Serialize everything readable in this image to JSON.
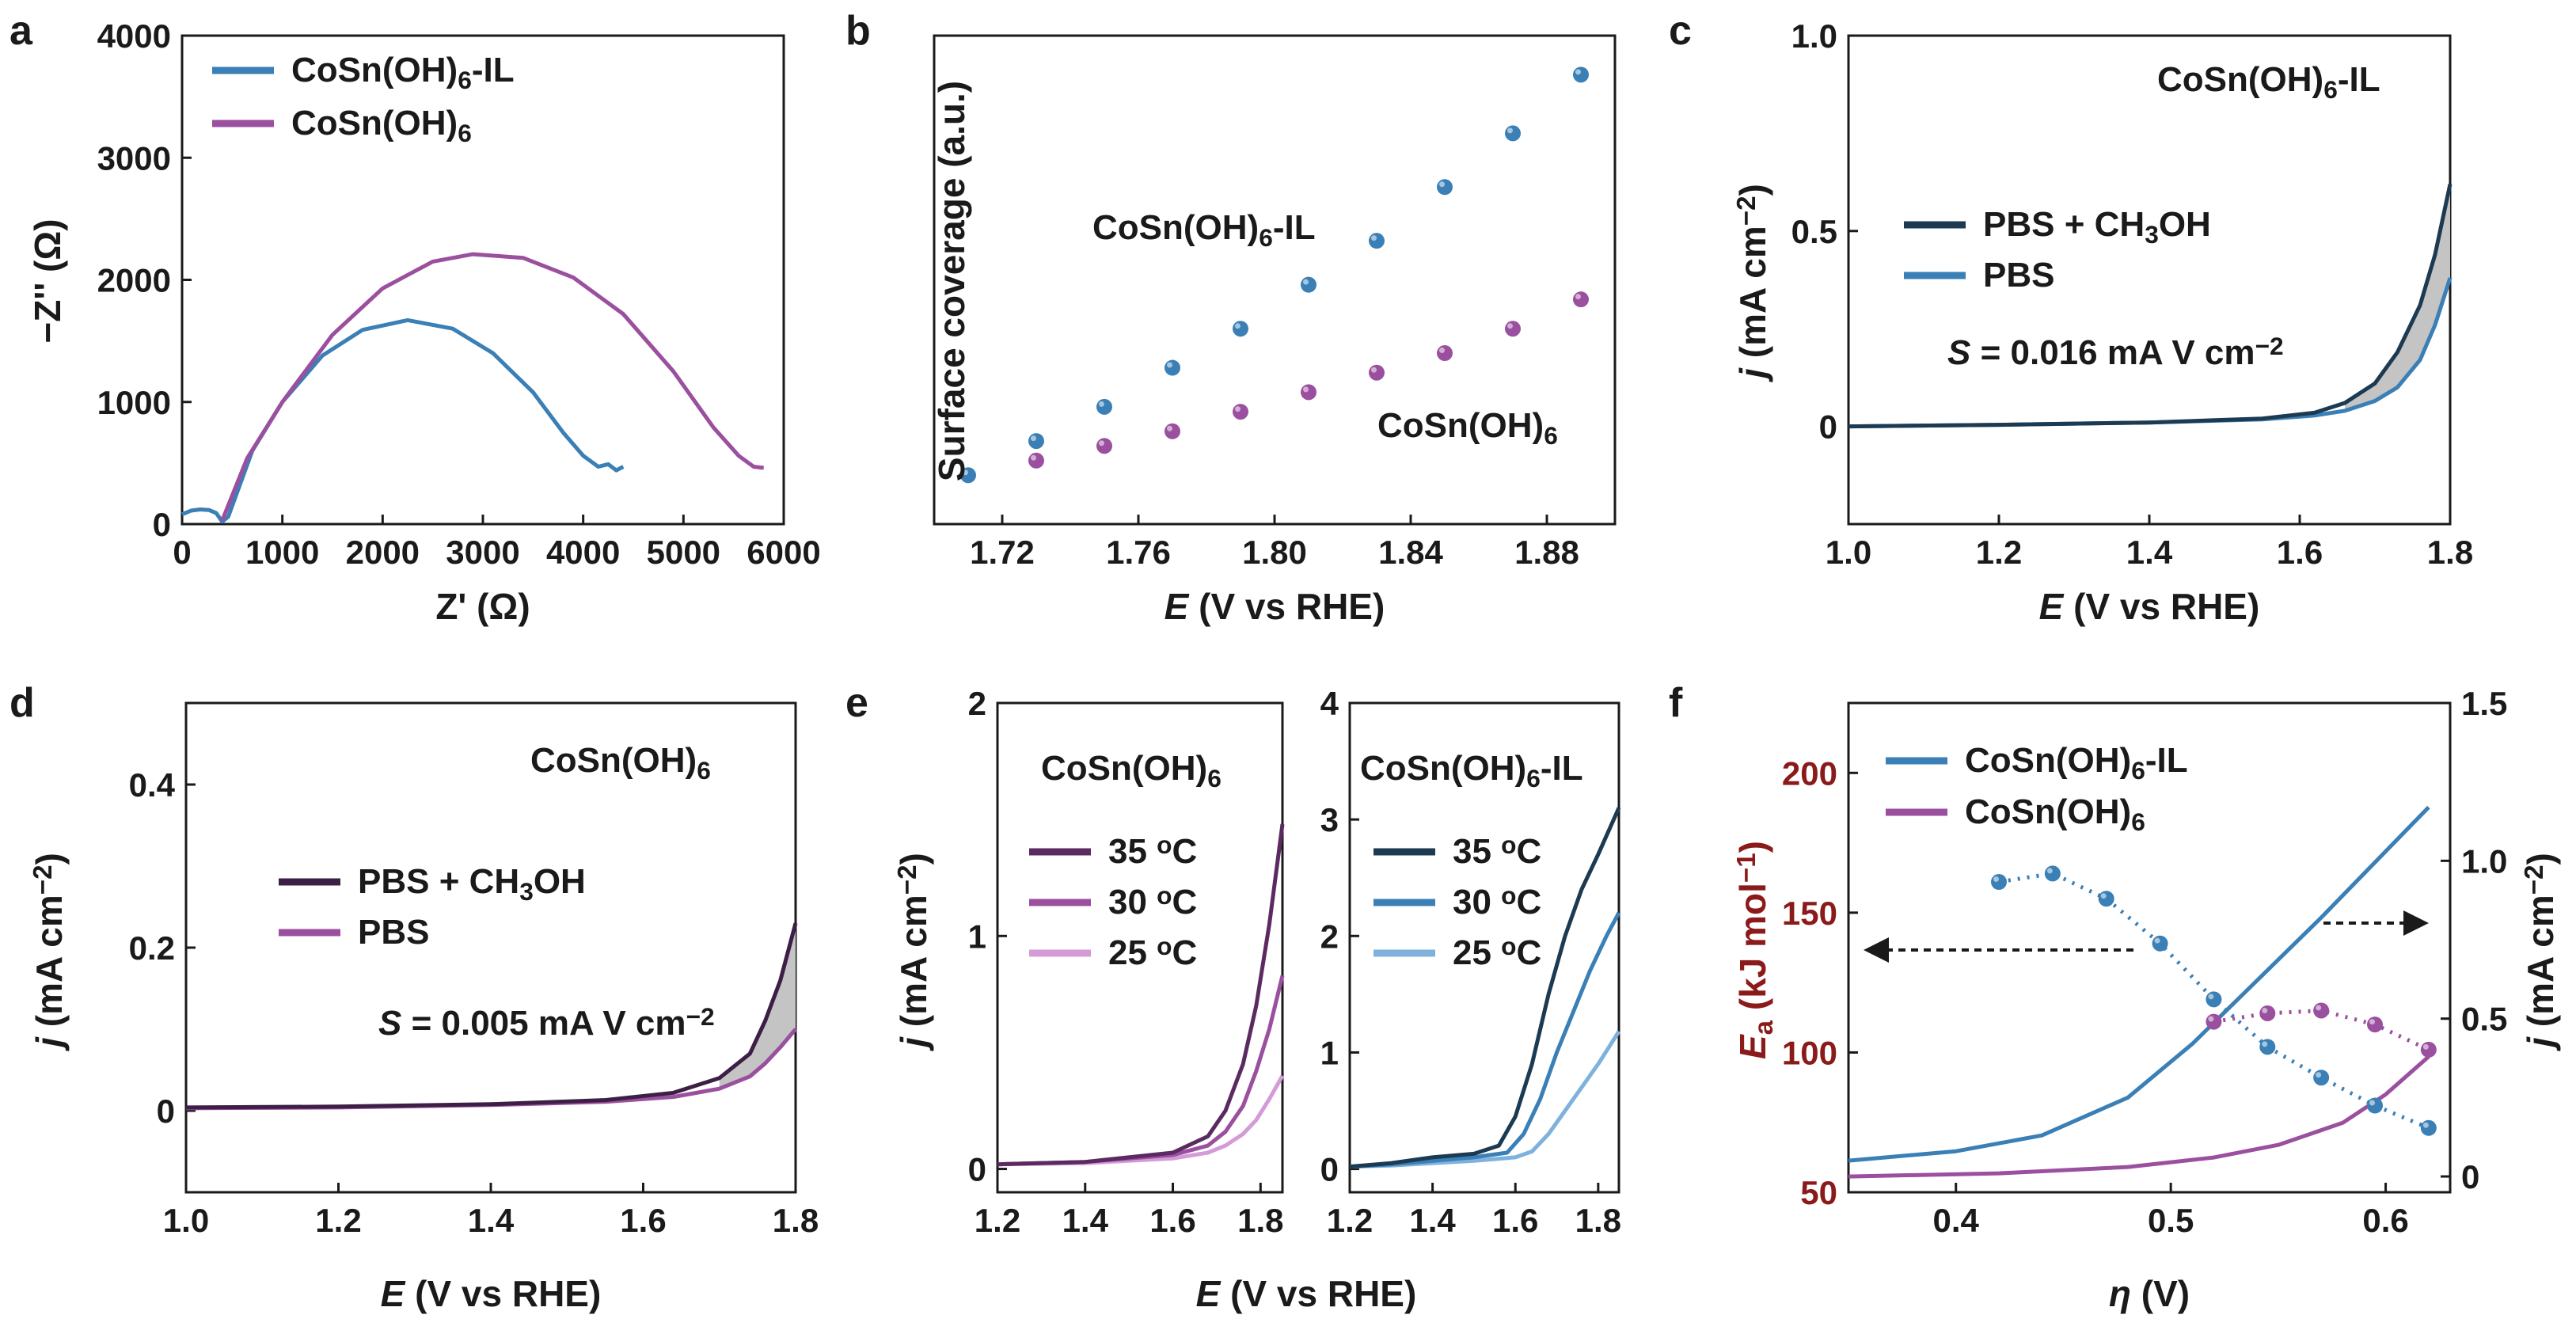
{
  "chart_data": [
    {
      "panel": "a",
      "type": "line",
      "xlabel": "Z' (Ω)",
      "ylabel": "−Z'' (Ω)",
      "xlim": [
        0,
        6000
      ],
      "ylim": [
        0,
        4000
      ],
      "xticks": [
        "0",
        "1000",
        "2000",
        "3000",
        "4000",
        "5000",
        "6000"
      ],
      "yticks": [
        "0",
        "1000",
        "2000",
        "3000",
        "4000"
      ],
      "legend": [
        "CoSn(OH)6-IL",
        "CoSn(OH)6"
      ],
      "series": [
        {
          "name": "CoSn(OH)6-IL",
          "color": "#3a7fb5",
          "x": [
            0,
            90,
            180,
            270,
            340,
            400,
            460,
            700,
            1000,
            1400,
            1800,
            2250,
            2700,
            3100,
            3500,
            3800,
            4000,
            4150,
            4250,
            4330,
            4400
          ],
          "y": [
            80,
            110,
            120,
            115,
            90,
            20,
            60,
            600,
            1000,
            1380,
            1590,
            1670,
            1600,
            1400,
            1080,
            750,
            560,
            470,
            490,
            440,
            470
          ]
        },
        {
          "name": "CoSn(OH)6",
          "color": "#9b4f9f",
          "x": [
            400,
            650,
            1000,
            1500,
            2000,
            2500,
            2900,
            3400,
            3900,
            4400,
            4900,
            5300,
            5550,
            5700,
            5800
          ],
          "y": [
            30,
            540,
            1000,
            1550,
            1930,
            2150,
            2210,
            2180,
            2020,
            1720,
            1250,
            790,
            560,
            470,
            460
          ]
        }
      ]
    },
    {
      "panel": "b",
      "type": "scatter",
      "xlabel": "E  (V vs RHE)",
      "ylabel": "Surface coverage (a.u.)",
      "xlim": [
        1.7,
        1.9
      ],
      "ylim": [
        0,
        10
      ],
      "xticks": [
        "1.72",
        "1.76",
        "1.80",
        "1.84",
        "1.88"
      ],
      "annotations": [
        "CoSn(OH)6-IL",
        "CoSn(OH)6"
      ],
      "series": [
        {
          "name": "CoSn(OH)6-IL",
          "color": "#3a7fb5",
          "x": [
            1.71,
            1.73,
            1.75,
            1.77,
            1.79,
            1.81,
            1.83,
            1.85,
            1.87,
            1.89
          ],
          "y": [
            1.0,
            1.7,
            2.4,
            3.2,
            4.0,
            4.9,
            5.8,
            6.9,
            8.0,
            9.2
          ]
        },
        {
          "name": "CoSn(OH)6",
          "color": "#9b4f9f",
          "x": [
            1.73,
            1.75,
            1.77,
            1.79,
            1.81,
            1.83,
            1.85,
            1.87,
            1.89
          ],
          "y": [
            1.3,
            1.6,
            1.9,
            2.3,
            2.7,
            3.1,
            3.5,
            4.0,
            4.6
          ]
        }
      ]
    },
    {
      "panel": "c",
      "type": "line",
      "xlabel": "E (V vs RHE)",
      "ylabel": "j (mA cm−2)",
      "xlim": [
        1.0,
        1.8
      ],
      "ylim": [
        -0.25,
        1.0
      ],
      "xticks": [
        "1.0",
        "1.2",
        "1.4",
        "1.6",
        "1.8"
      ],
      "yticks": [
        "0",
        "0.5",
        "1.0"
      ],
      "annotations": [
        "CoSn(OH)6-IL",
        "S = 0.016 mA V cm−2"
      ],
      "legend": [
        "PBS + CH3OH",
        "PBS"
      ],
      "series": [
        {
          "name": "PBS + CH3OH",
          "color": "#1c3a52",
          "x": [
            1.0,
            1.2,
            1.4,
            1.55,
            1.62,
            1.66,
            1.7,
            1.73,
            1.76,
            1.78,
            1.8
          ],
          "y": [
            0,
            0.004,
            0.01,
            0.02,
            0.035,
            0.06,
            0.11,
            0.19,
            0.31,
            0.44,
            0.62
          ]
        },
        {
          "name": "PBS",
          "color": "#3a7fb5",
          "x": [
            1.0,
            1.2,
            1.4,
            1.55,
            1.62,
            1.66,
            1.7,
            1.73,
            1.76,
            1.78,
            1.8
          ],
          "y": [
            0,
            0.004,
            0.01,
            0.018,
            0.028,
            0.04,
            0.065,
            0.1,
            0.17,
            0.26,
            0.38
          ]
        }
      ]
    },
    {
      "panel": "d",
      "type": "line",
      "xlabel": "E (V vs RHE)",
      "ylabel": "j (mA cm−2)",
      "xlim": [
        1.0,
        1.8
      ],
      "ylim": [
        -0.1,
        0.5
      ],
      "xticks": [
        "1.0",
        "1.2",
        "1.4",
        "1.6",
        "1.8"
      ],
      "yticks": [
        "0",
        "0.2",
        "0.4"
      ],
      "annotations": [
        "CoSn(OH)6",
        "S = 0.005 mA V cm−2"
      ],
      "legend": [
        "PBS + CH3OH",
        "PBS"
      ],
      "series": [
        {
          "name": "PBS + CH3OH",
          "color": "#3d1f45",
          "x": [
            1.0,
            1.2,
            1.4,
            1.55,
            1.64,
            1.7,
            1.74,
            1.76,
            1.78,
            1.8
          ],
          "y": [
            0.004,
            0.005,
            0.008,
            0.013,
            0.022,
            0.04,
            0.07,
            0.11,
            0.16,
            0.23
          ]
        },
        {
          "name": "PBS",
          "color": "#9b4f9f",
          "x": [
            1.0,
            1.2,
            1.4,
            1.55,
            1.64,
            1.7,
            1.74,
            1.76,
            1.78,
            1.8
          ],
          "y": [
            0.003,
            0.004,
            0.007,
            0.011,
            0.017,
            0.027,
            0.042,
            0.058,
            0.078,
            0.1
          ]
        }
      ]
    },
    {
      "panel": "e-left",
      "type": "line",
      "xlabel": "",
      "ylabel": "j (mA cm−2)",
      "xlim": [
        1.2,
        1.85
      ],
      "ylim": [
        -0.1,
        2.0
      ],
      "xticks": [
        "1.2",
        "1.4",
        "1.6",
        "1.8"
      ],
      "yticks": [
        "0",
        "1",
        "2"
      ],
      "annotations": [
        "CoSn(OH)6"
      ],
      "legend": [
        "35 oC",
        "30 oC",
        "25 oC"
      ],
      "series": [
        {
          "name": "35 oC",
          "color": "#5b2a61",
          "x": [
            1.2,
            1.4,
            1.6,
            1.68,
            1.72,
            1.76,
            1.79,
            1.82,
            1.85
          ],
          "y": [
            0.02,
            0.03,
            0.07,
            0.14,
            0.25,
            0.45,
            0.7,
            1.05,
            1.48
          ]
        },
        {
          "name": "30 oC",
          "color": "#9b4f9f",
          "x": [
            1.2,
            1.4,
            1.6,
            1.68,
            1.72,
            1.76,
            1.79,
            1.82,
            1.85
          ],
          "y": [
            0.02,
            0.03,
            0.06,
            0.1,
            0.16,
            0.27,
            0.42,
            0.6,
            0.83
          ]
        },
        {
          "name": "25 oC",
          "color": "#d49bd6",
          "x": [
            1.2,
            1.4,
            1.6,
            1.68,
            1.72,
            1.76,
            1.79,
            1.82,
            1.85
          ],
          "y": [
            0.02,
            0.025,
            0.045,
            0.07,
            0.1,
            0.15,
            0.21,
            0.3,
            0.4
          ]
        }
      ]
    },
    {
      "panel": "e-right",
      "type": "line",
      "xlabel": "E (V vs RHE)",
      "ylabel": "",
      "xlim": [
        1.2,
        1.85
      ],
      "ylim": [
        -0.2,
        4.0
      ],
      "xticks": [
        "1.2",
        "1.4",
        "1.6",
        "1.8"
      ],
      "yticks": [
        "0",
        "1",
        "2",
        "3",
        "4"
      ],
      "annotations": [
        "CoSn(OH)6-IL"
      ],
      "legend": [
        "35 oC",
        "30 oC",
        "25 oC"
      ],
      "series": [
        {
          "name": "35 oC",
          "color": "#1c3a52",
          "x": [
            1.2,
            1.3,
            1.4,
            1.5,
            1.56,
            1.6,
            1.64,
            1.68,
            1.72,
            1.76,
            1.8,
            1.85
          ],
          "y": [
            0.02,
            0.05,
            0.1,
            0.13,
            0.2,
            0.45,
            0.9,
            1.5,
            2.0,
            2.4,
            2.7,
            3.1
          ]
        },
        {
          "name": "30 oC",
          "color": "#3a7fb5",
          "x": [
            1.2,
            1.3,
            1.4,
            1.5,
            1.58,
            1.62,
            1.66,
            1.7,
            1.74,
            1.78,
            1.82,
            1.85
          ],
          "y": [
            0.02,
            0.04,
            0.07,
            0.1,
            0.14,
            0.3,
            0.6,
            1.0,
            1.35,
            1.7,
            2.0,
            2.2
          ]
        },
        {
          "name": "25 oC",
          "color": "#7eb2dd",
          "x": [
            1.2,
            1.3,
            1.4,
            1.5,
            1.6,
            1.64,
            1.68,
            1.72,
            1.76,
            1.8,
            1.85
          ],
          "y": [
            0.02,
            0.03,
            0.05,
            0.07,
            0.1,
            0.15,
            0.3,
            0.5,
            0.7,
            0.9,
            1.18
          ]
        }
      ]
    },
    {
      "panel": "f",
      "type": "line",
      "xlabel": "η (V)",
      "ylabel": "Ea (kJ mol−1)",
      "ylabel_right": "j (mA cm−2)",
      "xlim": [
        0.35,
        0.63
      ],
      "ylim": [
        50,
        225
      ],
      "ylim_right": [
        -0.05,
        1.5
      ],
      "xticks": [
        "0.4",
        "0.5",
        "0.6"
      ],
      "yticks": [
        "50",
        "100",
        "150",
        "200"
      ],
      "yticks_right": [
        "0",
        "0.5",
        "1.0",
        "1.5"
      ],
      "colors": {
        "left_axis": "#8b1a1a",
        "ea_IL": "#3a7fb5",
        "ea": "#9b4f9f"
      },
      "legend": [
        "CoSn(OH)6-IL",
        "CoSn(OH)6"
      ],
      "series": [
        {
          "name": "CoSn(OH)6-IL",
          "axis": "right",
          "color": "#3a7fb5",
          "x": [
            0.35,
            0.4,
            0.44,
            0.48,
            0.51,
            0.54,
            0.57,
            0.6,
            0.62
          ],
          "y": [
            0.05,
            0.08,
            0.13,
            0.25,
            0.42,
            0.62,
            0.82,
            1.03,
            1.17
          ]
        },
        {
          "name": "CoSn(OH)6",
          "axis": "right",
          "color": "#9b4f9f",
          "x": [
            0.35,
            0.42,
            0.48,
            0.52,
            0.55,
            0.58,
            0.6,
            0.62
          ],
          "y": [
            0.0,
            0.01,
            0.03,
            0.06,
            0.1,
            0.17,
            0.26,
            0.38
          ]
        },
        {
          "name": "Ea CoSn(OH)6-IL",
          "axis": "left",
          "style": "dotted-markers",
          "color": "#3a7fb5",
          "x": [
            0.42,
            0.445,
            0.47,
            0.495,
            0.52,
            0.545,
            0.57,
            0.595,
            0.62
          ],
          "y": [
            161,
            164,
            155,
            139,
            119,
            102,
            91,
            81,
            73
          ]
        },
        {
          "name": "Ea CoSn(OH)6",
          "axis": "left",
          "style": "dotted-markers",
          "color": "#9b4f9f",
          "x": [
            0.52,
            0.545,
            0.57,
            0.595,
            0.62
          ],
          "y": [
            111,
            114,
            115,
            110,
            101
          ]
        }
      ]
    }
  ]
}
